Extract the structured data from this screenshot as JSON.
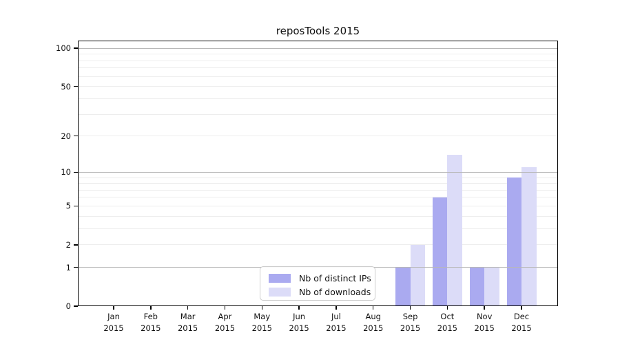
{
  "figure": {
    "title": "reposTools 2015"
  },
  "chart_data": {
    "type": "bar",
    "title": "reposTools 2015",
    "categories": [
      "Jan 2015",
      "Feb 2015",
      "Mar 2015",
      "Apr 2015",
      "May 2015",
      "Jun 2015",
      "Jul 2015",
      "Aug 2015",
      "Sep 2015",
      "Oct 2015",
      "Nov 2015",
      "Dec 2015"
    ],
    "series": [
      {
        "name": "Nb of distinct IPs",
        "color": "#aaaaf0",
        "values": [
          0,
          0,
          0,
          0,
          0,
          0,
          0,
          0,
          1,
          6,
          1,
          9
        ]
      },
      {
        "name": "Nb of downloads",
        "color": "#dcdcf8",
        "values": [
          0,
          0,
          0,
          0,
          0,
          0,
          0,
          0,
          2,
          14,
          1,
          11
        ]
      }
    ],
    "xlabel": "",
    "ylabel": "",
    "yscale": "log1p",
    "ylim": [
      0,
      116
    ],
    "y_tick_labels": [
      "0",
      "1",
      "2",
      "5",
      "10",
      "20",
      "50",
      "100"
    ],
    "y_major_gridlines": [
      1,
      10,
      100
    ],
    "y_minor_gridlines": [
      2,
      3,
      4,
      5,
      6,
      7,
      8,
      9,
      20,
      30,
      40,
      50,
      60,
      70,
      80,
      90
    ],
    "grid": "horizontal",
    "legend": {
      "position": "lower center",
      "border_color": "#cccccc",
      "background": "#ffffff"
    },
    "colors": {
      "major_grid": "#b8b8b8",
      "minor_grid": "#ededed",
      "spine": "#000000",
      "text": "#111111"
    }
  }
}
